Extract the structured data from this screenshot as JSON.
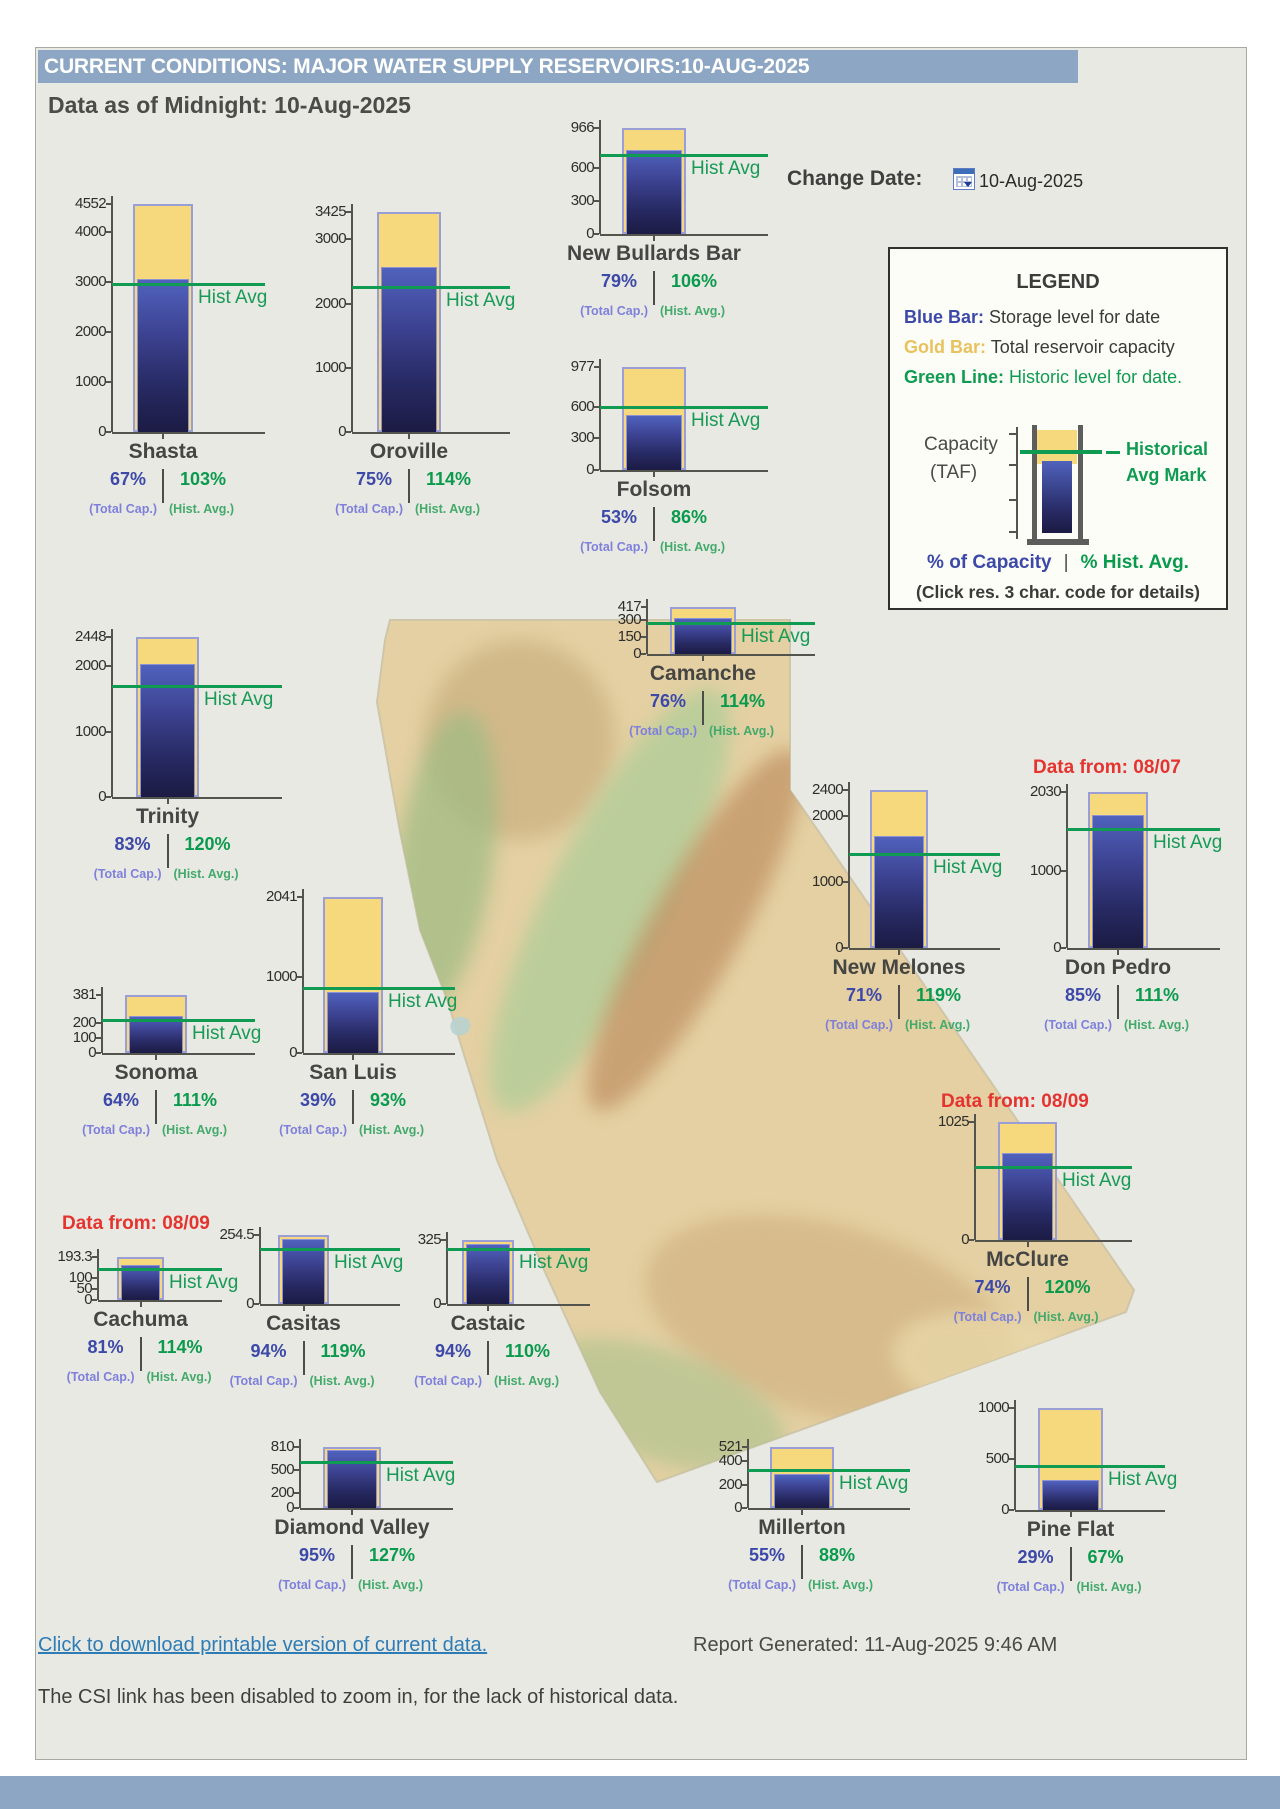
{
  "title_bar": "CURRENT CONDITIONS: MAJOR WATER SUPPLY RESERVOIRS:10-AUG-2025",
  "subtitle": "Data as of Midnight: 10-Aug-2025",
  "change_date": {
    "label": "Change Date:",
    "value": "10-Aug-2025",
    "icon": "calendar-icon"
  },
  "captions": {
    "total_cap": "(Total Cap.)",
    "hist_avg": "(Hist. Avg.)",
    "hist_line": "Hist Avg"
  },
  "legend": {
    "title": "LEGEND",
    "blue_bar_term": "Blue Bar:",
    "blue_bar_desc": "Storage level for date",
    "gold_bar_term": "Gold Bar:",
    "gold_bar_desc": "Total reservoir capacity",
    "green_line_term": "Green Line:",
    "green_line_desc": "Historic level for date.",
    "capacity_label": "Capacity",
    "capacity_units": "(TAF)",
    "hist_mark_label_1": "Historical",
    "hist_mark_label_2": "Avg Mark",
    "pct_capacity_label": "% of Capacity",
    "divider": "|",
    "pct_hist_label": "% Hist. Avg.",
    "note": "(Click res. 3 char. code for details)"
  },
  "footer": {
    "download_link": "Click to download printable version of current data.",
    "report_generated": "Report Generated: 11-Aug-2025 9:46 AM",
    "csi_note": "The CSI link has been disabled to zoom in, for the lack of historical data."
  },
  "colors": {
    "gold_bar": "#f6d87d",
    "storage_blue": "#3d4392",
    "hist_green": "#0f9b51",
    "title_bar": "#8ca6c3",
    "data_from_red": "#e53430",
    "link_blue": "#2e7cb5"
  },
  "chart_data": {
    "type": "bar",
    "units": "TAF",
    "note": "Each reservoir: gold bar = total capacity (axis max), blue bar = storage as % of capacity, green line = historic average level for date",
    "reservoirs": [
      {
        "id": "shasta",
        "name": "Shasta",
        "capacity_taf": 4552,
        "ticks": [
          4552,
          4000,
          3000,
          2000,
          1000,
          0
        ],
        "pct_of_capacity": 67,
        "pct_of_hist_avg": 103
      },
      {
        "id": "oroville",
        "name": "Oroville",
        "capacity_taf": 3425,
        "ticks": [
          3425,
          3000,
          2000,
          1000,
          0
        ],
        "pct_of_capacity": 75,
        "pct_of_hist_avg": 114
      },
      {
        "id": "new_bullards",
        "name": "New Bullards Bar",
        "capacity_taf": 966,
        "ticks": [
          966,
          600,
          300,
          0
        ],
        "pct_of_capacity": 79,
        "pct_of_hist_avg": 106
      },
      {
        "id": "folsom",
        "name": "Folsom",
        "capacity_taf": 977,
        "ticks": [
          977,
          600,
          300,
          0
        ],
        "pct_of_capacity": 53,
        "pct_of_hist_avg": 86
      },
      {
        "id": "camanche",
        "name": "Camanche",
        "capacity_taf": 417,
        "ticks": [
          417,
          300,
          150,
          0
        ],
        "pct_of_capacity": 76,
        "pct_of_hist_avg": 114
      },
      {
        "id": "trinity",
        "name": "Trinity",
        "capacity_taf": 2448,
        "ticks": [
          2448,
          2000,
          1000,
          0
        ],
        "pct_of_capacity": 83,
        "pct_of_hist_avg": 120
      },
      {
        "id": "new_melones",
        "name": "New Melones",
        "capacity_taf": 2400,
        "ticks": [
          2400,
          2000,
          1000,
          0
        ],
        "pct_of_capacity": 71,
        "pct_of_hist_avg": 119
      },
      {
        "id": "don_pedro",
        "name": "Don Pedro",
        "capacity_taf": 2030,
        "ticks": [
          2030,
          1000,
          0
        ],
        "pct_of_capacity": 85,
        "pct_of_hist_avg": 111,
        "data_from": "Data from: 08/07"
      },
      {
        "id": "sonoma",
        "name": "Sonoma",
        "capacity_taf": 381,
        "ticks": [
          381,
          200,
          100,
          0
        ],
        "pct_of_capacity": 64,
        "pct_of_hist_avg": 111
      },
      {
        "id": "san_luis",
        "name": "San Luis",
        "capacity_taf": 2041,
        "ticks": [
          2041,
          1000,
          0
        ],
        "pct_of_capacity": 39,
        "pct_of_hist_avg": 93
      },
      {
        "id": "mcclure",
        "name": "McClure",
        "capacity_taf": 1025,
        "ticks": [
          1025,
          0
        ],
        "pct_of_capacity": 74,
        "pct_of_hist_avg": 120,
        "data_from": "Data from: 08/09"
      },
      {
        "id": "cachuma",
        "name": "Cachuma",
        "capacity_taf": 193.3,
        "ticks": [
          193.3,
          100,
          50,
          0
        ],
        "pct_of_capacity": 81,
        "pct_of_hist_avg": 114,
        "data_from": "Data from: 08/09"
      },
      {
        "id": "casitas",
        "name": "Casitas",
        "capacity_taf": 254.5,
        "ticks": [
          254.5,
          0
        ],
        "pct_of_capacity": 94,
        "pct_of_hist_avg": 119
      },
      {
        "id": "castaic",
        "name": "Castaic",
        "capacity_taf": 325,
        "ticks": [
          325,
          0
        ],
        "pct_of_capacity": 94,
        "pct_of_hist_avg": 110
      },
      {
        "id": "diamond_valley",
        "name": "Diamond Valley",
        "capacity_taf": 810,
        "ticks": [
          810,
          500,
          200,
          0
        ],
        "pct_of_capacity": 95,
        "pct_of_hist_avg": 127
      },
      {
        "id": "millerton",
        "name": "Millerton",
        "capacity_taf": 521,
        "ticks": [
          521,
          400,
          200,
          0
        ],
        "pct_of_capacity": 55,
        "pct_of_hist_avg": 88
      },
      {
        "id": "pine_flat",
        "name": "Pine Flat",
        "capacity_taf": 1000,
        "ticks": [
          1000,
          500,
          0
        ],
        "pct_of_capacity": 29,
        "pct_of_hist_avg": 67
      }
    ]
  }
}
